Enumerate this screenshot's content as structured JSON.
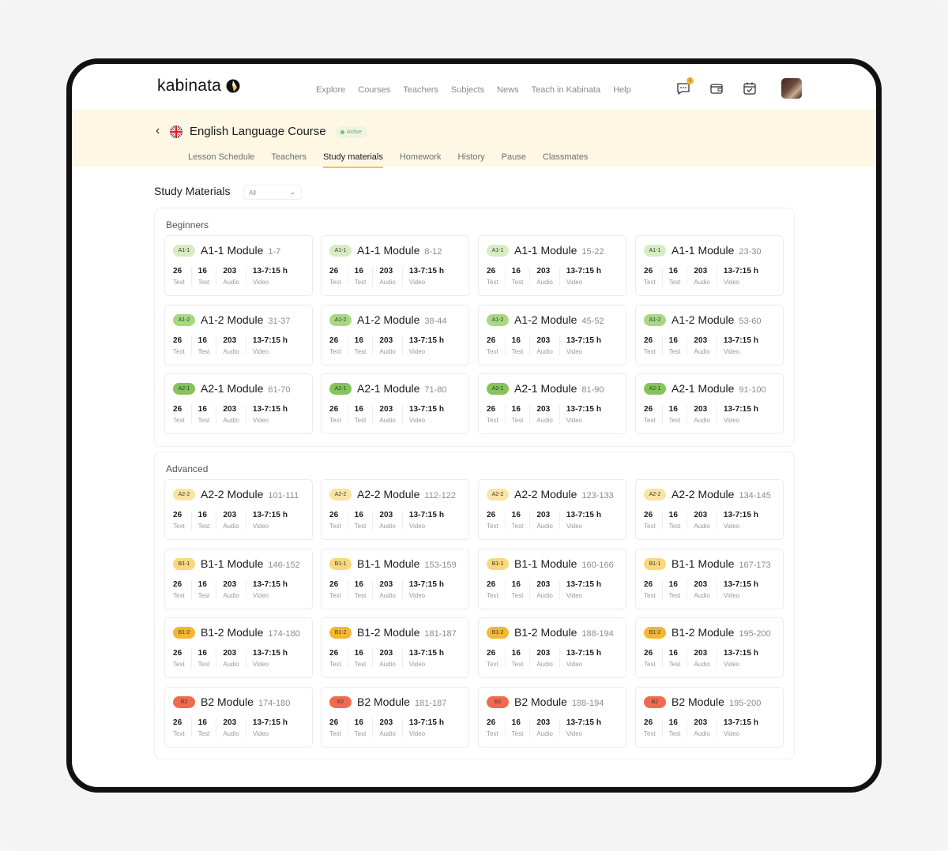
{
  "app": {
    "logo_text": "kabinata"
  },
  "nav": [
    "Explore",
    "Courses",
    "Teachers",
    "Subjects",
    "News",
    "Teach in Kabinata",
    "Help"
  ],
  "header_icons": {
    "messages_badge": "1"
  },
  "course": {
    "title": "English Language Course",
    "status": "Active"
  },
  "tabs": [
    "Lesson Schedule",
    "Teachers",
    "Study materials",
    "Homework",
    "History",
    "Pause",
    "Classmates"
  ],
  "active_tab": "Study materials",
  "materials": {
    "title": "Study Materials",
    "filter_value": "All"
  },
  "colors": {
    "A1-1": "#d6ecc2",
    "A1-2": "#a8d884",
    "A2-1": "#84c45a",
    "A2-2": "#fbe3a6",
    "B1-1": "#f9d77c",
    "B1-2": "#f5b731",
    "B2": "#f06a4f"
  },
  "stat_labels": [
    "Text",
    "Test",
    "Audio",
    "Video"
  ],
  "sections": [
    {
      "title": "Beginners",
      "rows": [
        {
          "level": "A1-1",
          "name": "A1-1 Module",
          "ranges": [
            "1-7",
            "8-12",
            "15-22",
            "23-30"
          ]
        },
        {
          "level": "A1-2",
          "name": "A1-2 Module",
          "ranges": [
            "31-37",
            "38-44",
            "45-52",
            "53-60"
          ]
        },
        {
          "level": "A2-1",
          "name": "A2-1 Module",
          "ranges": [
            "61-70",
            "71-80",
            "81-90",
            "91-100"
          ]
        }
      ]
    },
    {
      "title": "Advanced",
      "rows": [
        {
          "level": "A2-2",
          "name": "A2-2 Module",
          "ranges": [
            "101-111",
            "112-122",
            "123-133",
            "134-145"
          ]
        },
        {
          "level": "B1-1",
          "name": "B1-1 Module",
          "ranges": [
            "146-152",
            "153-159",
            "160-166",
            "167-173"
          ]
        },
        {
          "level": "B1-2",
          "name": "B1-2 Module",
          "ranges": [
            "174-180",
            "181-187",
            "188-194",
            "195-200"
          ]
        },
        {
          "level": "B2",
          "name": "B2 Module",
          "ranges": [
            "174-180",
            "181-187",
            "188-194",
            "195-200"
          ]
        }
      ]
    }
  ],
  "card_stats": [
    "26",
    "16",
    "203",
    "13-7:15 h"
  ]
}
